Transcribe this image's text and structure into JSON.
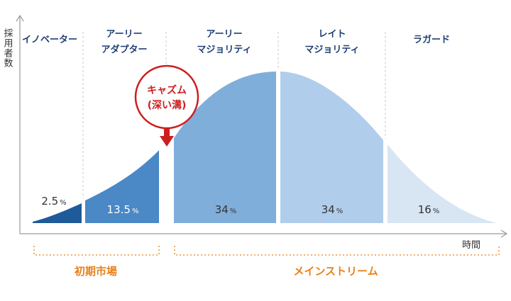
{
  "axis": {
    "y_label": "採用者数",
    "x_label": "時間"
  },
  "segments": [
    {
      "key": "innovators",
      "label_lines": [
        "イノベーター"
      ],
      "percent": "2.5",
      "unit": "%"
    },
    {
      "key": "early_adopters",
      "label_lines": [
        "アーリー",
        "アダプター"
      ],
      "percent": "13.5",
      "unit": "%"
    },
    {
      "key": "early_majority",
      "label_lines": [
        "アーリー",
        "マジョリティ"
      ],
      "percent": "34",
      "unit": "%"
    },
    {
      "key": "late_majority",
      "label_lines": [
        "レイト",
        "マジョリティ"
      ],
      "percent": "34",
      "unit": "%"
    },
    {
      "key": "laggards",
      "label_lines": [
        "ラガード"
      ],
      "percent": "16",
      "unit": "%"
    }
  ],
  "chasm": {
    "lines": [
      "キャズム",
      "(深い溝)"
    ],
    "color": "#cc1f1f"
  },
  "brackets": {
    "early_market": "初期市場",
    "mainstream": "メインストリーム",
    "color": "#e8821a"
  },
  "colors": {
    "innovators": "#1f5a99",
    "early_adopters": "#4a88c6",
    "early_majority": "#80aedb",
    "late_majority": "#b0cdeb",
    "laggards": "#d8e5f2"
  }
}
